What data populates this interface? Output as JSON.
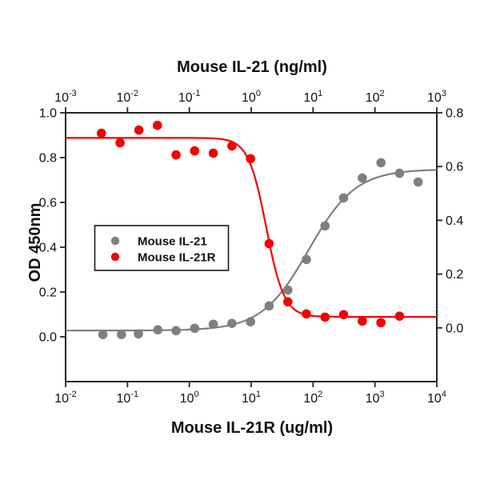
{
  "figure": {
    "top_axis_title": "Mouse IL-21 (ng/ml)",
    "bottom_axis_title": "Mouse IL-21R (ug/ml)",
    "left_axis_title": "OD 450nm"
  },
  "colors": {
    "il21_gray": "#7f7f7f",
    "il21r_red": "#f40000",
    "axis": "#262626",
    "text": "#111111",
    "background": "#ffffff"
  },
  "legend": {
    "items": [
      {
        "label": "Mouse IL-21",
        "color": "#7f7f7f"
      },
      {
        "label": "Mouse IL-21R",
        "color": "#f40000"
      }
    ]
  },
  "chart_data": {
    "type": "scatter",
    "title": "Mouse IL-21 (ng/ml)",
    "xlabel": "Mouse IL-21R (ug/ml)",
    "ylabel": "OD 450nm",
    "grid": false,
    "legend_position": "middle-left",
    "x_top_axis": {
      "scale": "log",
      "unit": "ng/ml",
      "min": 0.001,
      "max": 1000,
      "tick_exponents": [
        -3,
        -2,
        -1,
        0,
        1,
        2,
        3
      ]
    },
    "x_bottom_axis": {
      "scale": "log",
      "unit": "ug/ml",
      "min": 0.01,
      "max": 10000,
      "tick_exponents": [
        -2,
        -1,
        0,
        1,
        2,
        3,
        4
      ]
    },
    "y_left_axis": {
      "min": -0.2,
      "max": 1.0,
      "ticks": [
        1.0,
        0.8,
        0.6,
        0.4,
        0.2,
        0.0
      ]
    },
    "y_right_axis": {
      "min": -0.2,
      "max": 0.8,
      "ticks": [
        0.8,
        0.6,
        0.4,
        0.2,
        0.0
      ]
    },
    "series": [
      {
        "id": "il21",
        "name": "Mouse IL-21",
        "color": "#7f7f7f",
        "x_axis": "top",
        "x_unit": "ng/ml",
        "points": [
          [
            0.004,
            0.01
          ],
          [
            0.008,
            0.01
          ],
          [
            0.015,
            0.013
          ],
          [
            0.031,
            0.031
          ],
          [
            0.061,
            0.027
          ],
          [
            0.122,
            0.038
          ],
          [
            0.244,
            0.056
          ],
          [
            0.488,
            0.06
          ],
          [
            0.977,
            0.067
          ],
          [
            1.95,
            0.138
          ],
          [
            3.91,
            0.209
          ],
          [
            7.81,
            0.345
          ],
          [
            15.6,
            0.495
          ],
          [
            31.2,
            0.62
          ],
          [
            62.5,
            0.709
          ],
          [
            125,
            0.777
          ],
          [
            250,
            0.73
          ],
          [
            500,
            0.691
          ]
        ],
        "fit": {
          "type": "4PL",
          "direction": "increasing",
          "bottom": 0.028,
          "top": 0.748,
          "ec50": 8.5,
          "hill": 1.15
        }
      },
      {
        "id": "il21r",
        "name": "Mouse IL-21R",
        "color": "#f40000",
        "x_axis": "bottom",
        "x_unit": "ug/ml",
        "points": [
          [
            0.038,
            0.909
          ],
          [
            0.076,
            0.866
          ],
          [
            0.153,
            0.923
          ],
          [
            0.305,
            0.944
          ],
          [
            0.61,
            0.812
          ],
          [
            1.22,
            0.83
          ],
          [
            2.44,
            0.82
          ],
          [
            4.88,
            0.852
          ],
          [
            9.77,
            0.795
          ],
          [
            19.5,
            0.416
          ],
          [
            39.1,
            0.156
          ],
          [
            78.1,
            0.102
          ],
          [
            156,
            0.088
          ],
          [
            312,
            0.099
          ],
          [
            625,
            0.07
          ],
          [
            1250,
            0.063
          ],
          [
            2500,
            0.092
          ]
        ],
        "fit": {
          "type": "4PL",
          "direction": "decreasing",
          "bottom": 0.089,
          "top": 0.888,
          "ec50": 17.5,
          "hill": 3.0
        }
      }
    ]
  }
}
